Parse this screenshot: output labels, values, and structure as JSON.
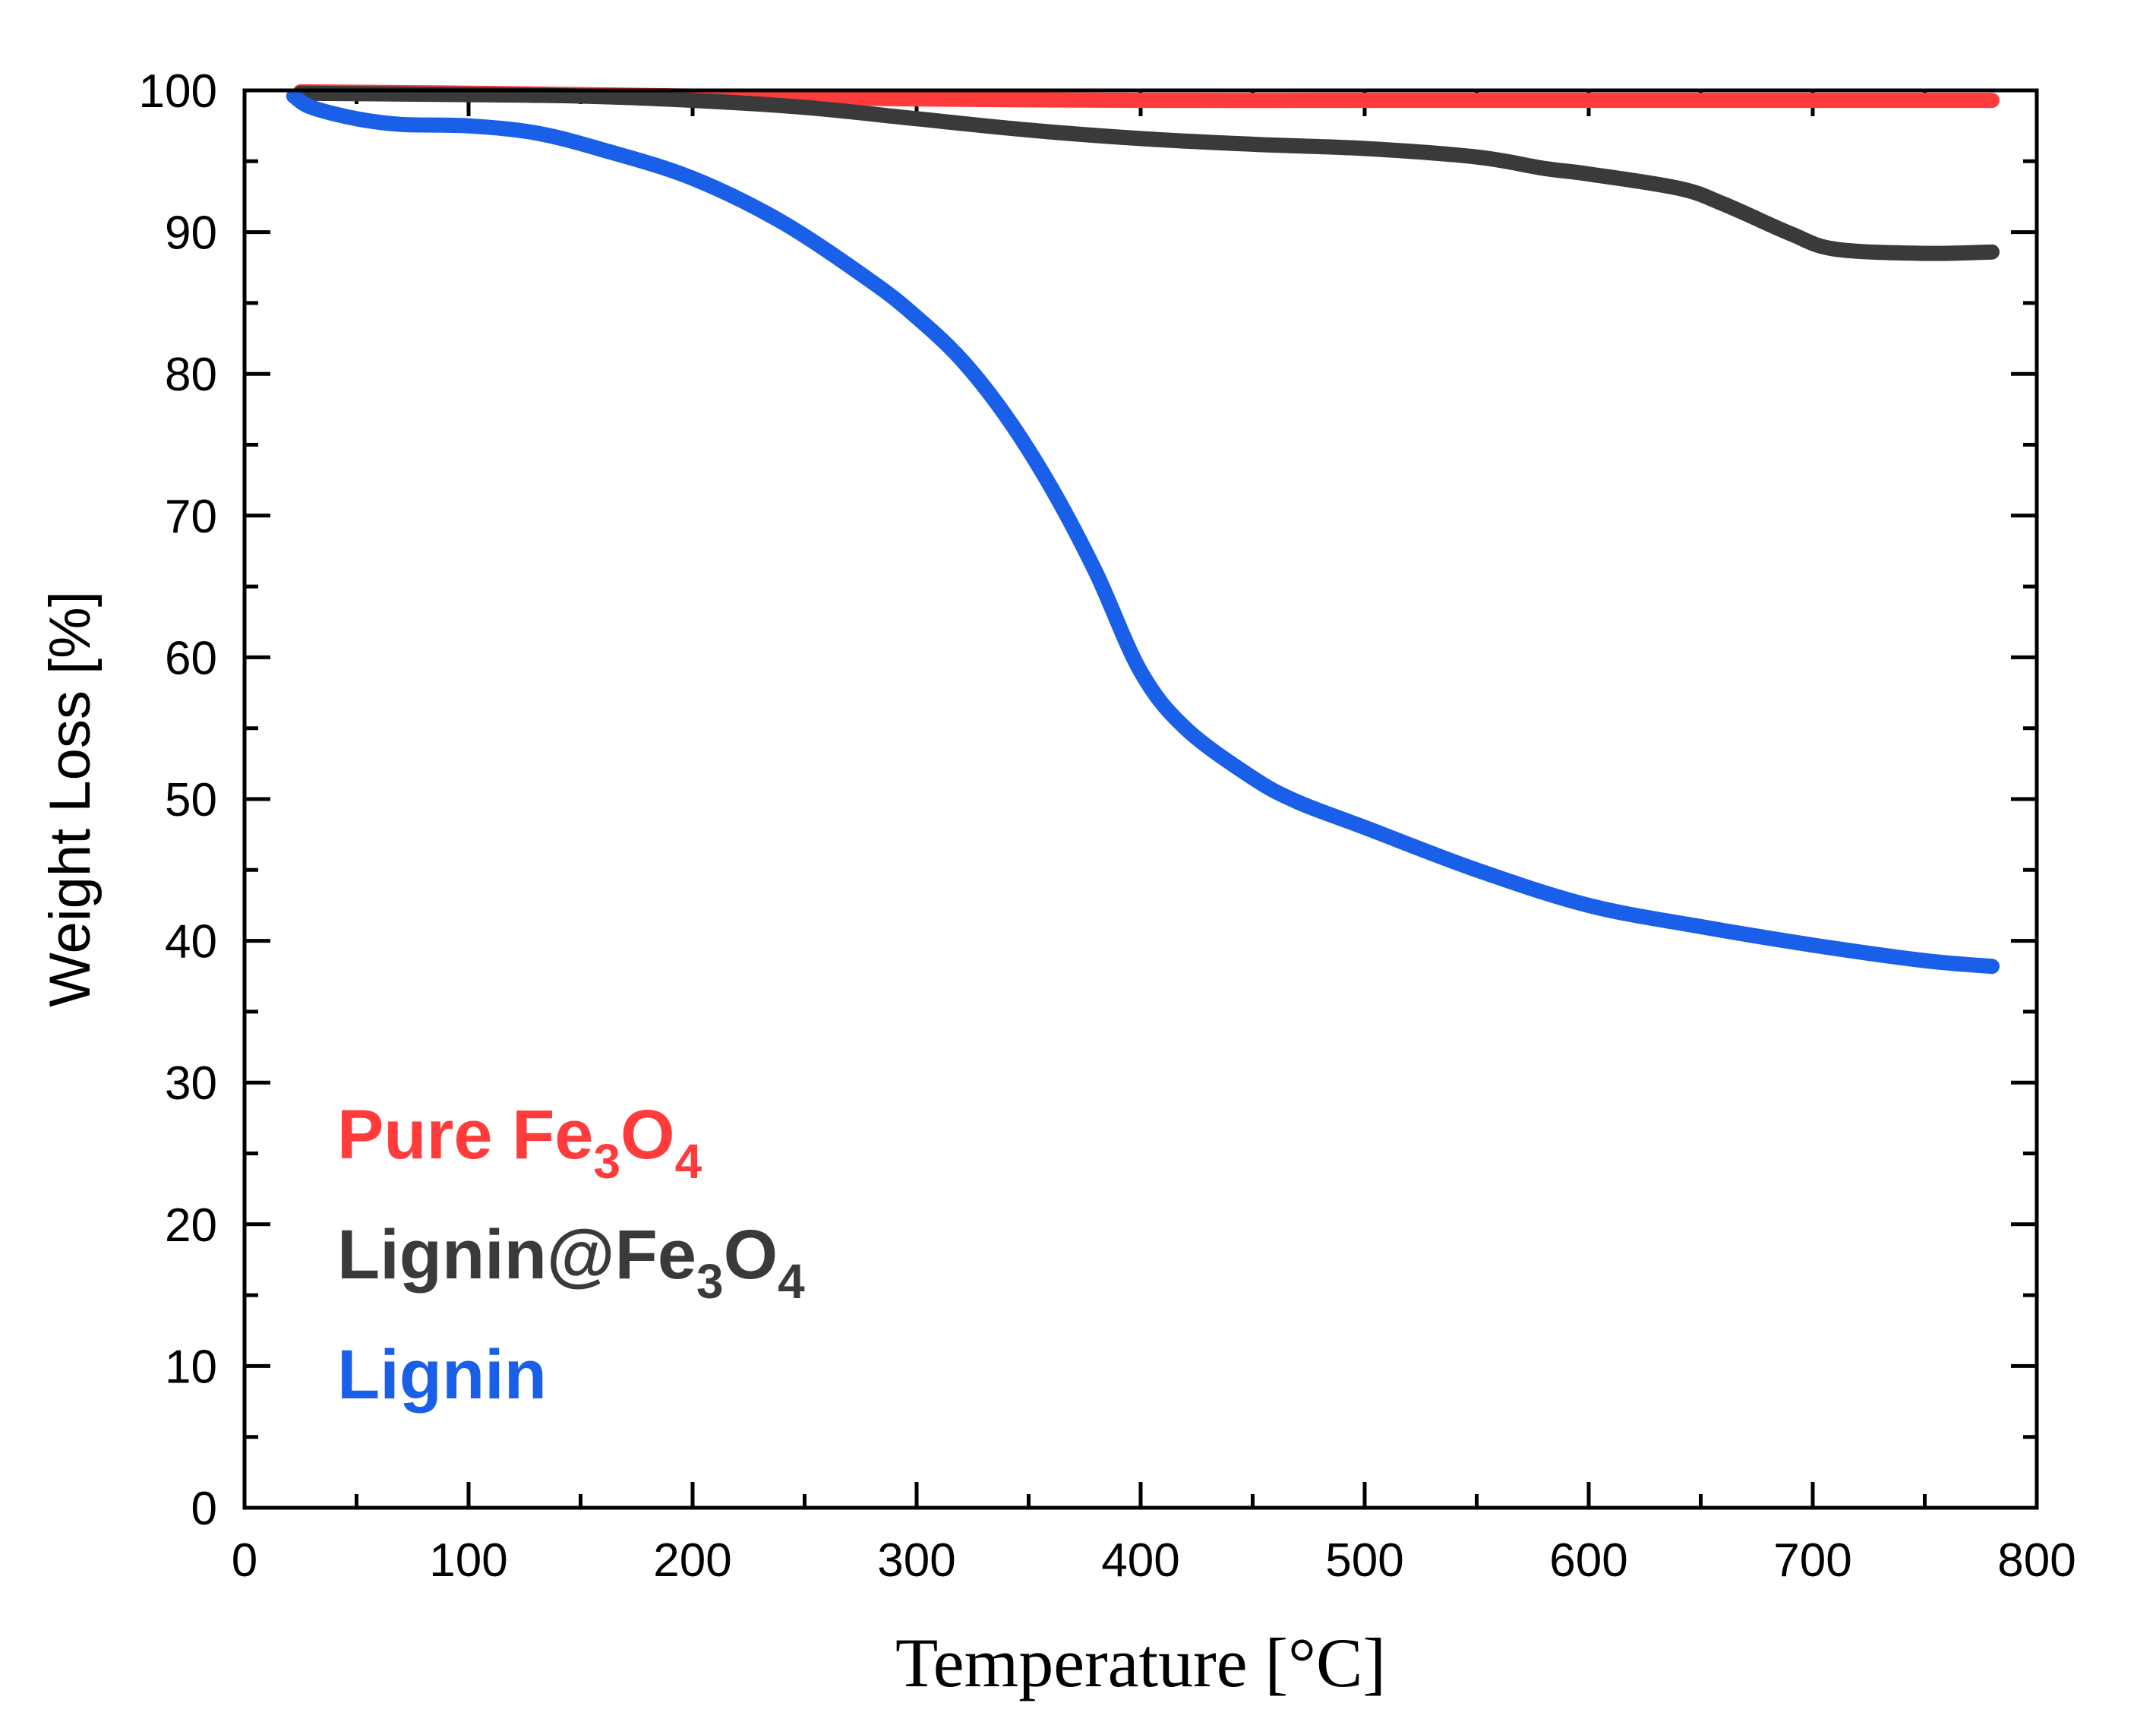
{
  "chart_data": {
    "type": "line",
    "title": "",
    "xlabel": "Temperature [°C]",
    "ylabel": "Weight Loss [%]",
    "xlim": [
      0,
      800
    ],
    "ylim": [
      0,
      100
    ],
    "xticks": [
      0,
      100,
      200,
      300,
      400,
      500,
      600,
      700,
      800
    ],
    "yticks": [
      0,
      10,
      20,
      30,
      40,
      50,
      60,
      70,
      80,
      90,
      100
    ],
    "grid": false,
    "legend_position": "bottom-left",
    "series": [
      {
        "name": "Pure Fe3O4",
        "label_main": "Pure Fe",
        "label_sub1": "3",
        "label_mid": "O",
        "label_sub2": "4",
        "color": "#ff3b3b",
        "x": [
          25,
          100,
          200,
          300,
          400,
          500,
          600,
          700,
          780
        ],
        "y": [
          99.9,
          99.8,
          99.6,
          99.4,
          99.3,
          99.3,
          99.3,
          99.3,
          99.3
        ]
      },
      {
        "name": "Lignin@Fe3O4",
        "label_main": "Lignin@Fe",
        "label_sub1": "3",
        "label_mid": "O",
        "label_sub2": "4",
        "color": "#3a3a3a",
        "x": [
          25,
          100,
          150,
          200,
          250,
          300,
          350,
          400,
          450,
          500,
          550,
          580,
          600,
          640,
          660,
          690,
          710,
          750,
          780
        ],
        "y": [
          99.8,
          99.7,
          99.6,
          99.3,
          98.8,
          98.0,
          97.2,
          96.6,
          96.2,
          95.9,
          95.3,
          94.5,
          94.1,
          93.1,
          92.0,
          89.9,
          88.8,
          88.5,
          88.6
        ]
      },
      {
        "name": "Lignin",
        "label_main": "Lignin",
        "label_sub1": "",
        "label_mid": "",
        "label_sub2": "",
        "color": "#1a5fe8",
        "x": [
          22,
          30,
          50,
          70,
          100,
          130,
          160,
          200,
          240,
          280,
          300,
          320,
          340,
          360,
          380,
          400,
          420,
          450,
          470,
          500,
          550,
          600,
          650,
          700,
          750,
          780
        ],
        "y": [
          99.6,
          98.8,
          98.0,
          97.6,
          97.5,
          97.0,
          95.8,
          93.8,
          90.7,
          86.5,
          84.0,
          81.0,
          77.0,
          72.0,
          66.0,
          59.0,
          55.0,
          51.5,
          49.8,
          48.0,
          45.0,
          42.5,
          41.0,
          39.7,
          38.6,
          38.2
        ]
      }
    ]
  }
}
